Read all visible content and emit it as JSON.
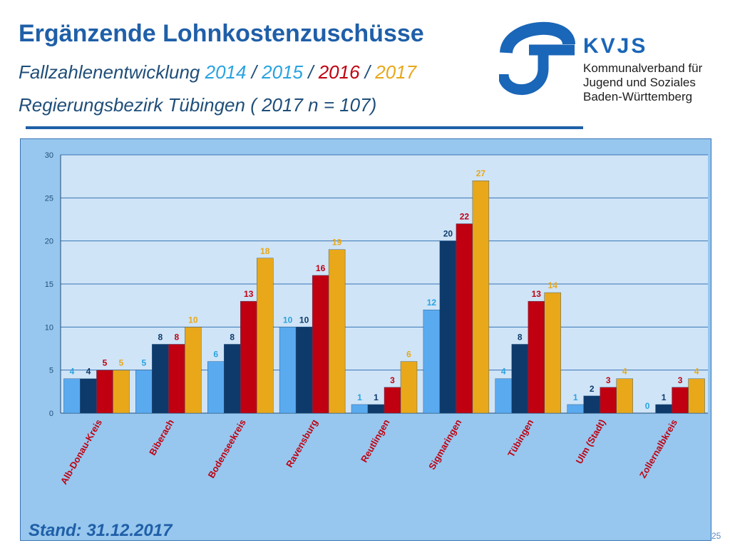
{
  "header": {
    "title": "Ergänzende Lohnkostenzuschüsse",
    "subtitle_prefix": "Fallzahlenentwicklung",
    "years": [
      "2014",
      "2015",
      "2016",
      "2017"
    ],
    "separator": "/",
    "region": "Regierungsbezirk Tübingen ( 2017 n = 107)"
  },
  "logo": {
    "name": "KVJS",
    "lines": [
      "Kommunalverband für",
      "Jugend und Soziales",
      "Baden-Württemberg"
    ],
    "colors": {
      "mark": "#1a66b8",
      "text": "#1d1d1d"
    }
  },
  "footer": {
    "stand": "Stand: 31.12.2017",
    "page": "25"
  },
  "colors": {
    "title": "#1f5fa8",
    "text": "#1f4e79",
    "panel_bg": "#97c7ee",
    "plot_bg": "#cfe4f7",
    "series": [
      "#5aaaf0",
      "#0e3a6b",
      "#c00010",
      "#e8a81a"
    ],
    "labels": [
      "#29a3e0",
      "#0e3a6b",
      "#c00010",
      "#e8a81a"
    ]
  },
  "chart_data": {
    "type": "bar",
    "categories": [
      "Alb-Donau-Kreis",
      "Biberach",
      "Bodenseekreis",
      "Ravensburg",
      "Reutlingen",
      "Sigmaringen",
      "Tübingen",
      "Ulm (Stadt)",
      "Zollernalbkreis"
    ],
    "series": [
      {
        "name": "2014",
        "values": [
          4,
          5,
          6,
          10,
          1,
          12,
          4,
          1,
          0
        ]
      },
      {
        "name": "2015",
        "values": [
          4,
          8,
          8,
          10,
          1,
          20,
          8,
          2,
          1
        ]
      },
      {
        "name": "2016",
        "values": [
          5,
          8,
          13,
          16,
          3,
          22,
          13,
          3,
          3
        ]
      },
      {
        "name": "2017",
        "values": [
          5,
          10,
          18,
          19,
          6,
          27,
          14,
          4,
          4
        ]
      }
    ],
    "ylim": [
      0,
      30
    ],
    "yticks": [
      0,
      5,
      10,
      15,
      20,
      25,
      30
    ],
    "grid": true,
    "legend": "none",
    "data_labels": true
  }
}
